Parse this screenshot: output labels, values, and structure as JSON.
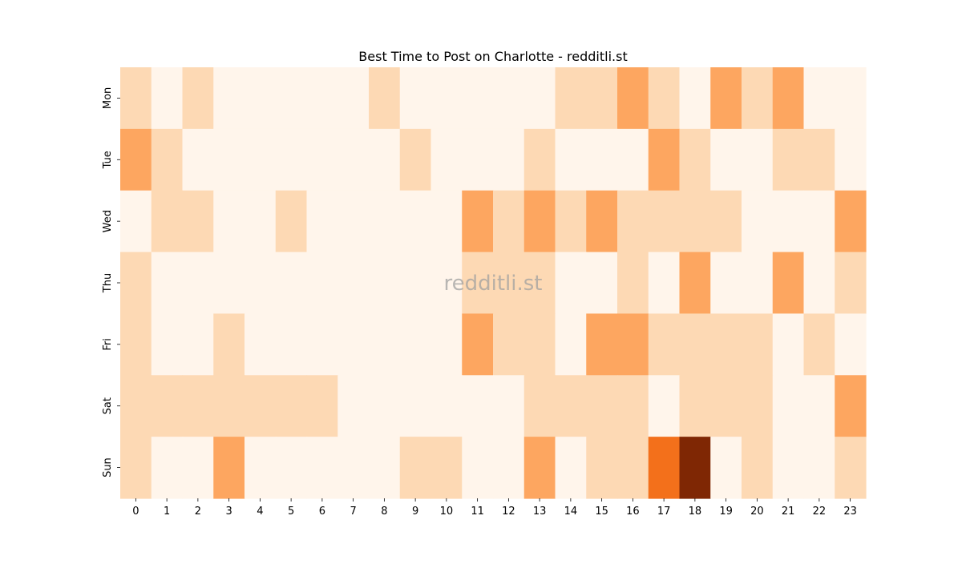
{
  "chart_data": {
    "type": "heatmap",
    "title": "Best Time to Post on Charlotte - redditli.st",
    "watermark": "redditli.st",
    "xlabel": "",
    "ylabel": "",
    "x_categories": [
      "0",
      "1",
      "2",
      "3",
      "4",
      "5",
      "6",
      "7",
      "8",
      "9",
      "10",
      "11",
      "12",
      "13",
      "14",
      "15",
      "16",
      "17",
      "18",
      "19",
      "20",
      "21",
      "22",
      "23"
    ],
    "y_categories": [
      "Mon",
      "Tue",
      "Wed",
      "Thu",
      "Fri",
      "Sat",
      "Sun"
    ],
    "values": [
      [
        1,
        0,
        1,
        0,
        0,
        0,
        0,
        0,
        1,
        0,
        0,
        0,
        0,
        0,
        1,
        1,
        2,
        1,
        0,
        2,
        1,
        2,
        0,
        0
      ],
      [
        2,
        1,
        0,
        0,
        0,
        0,
        0,
        0,
        0,
        1,
        0,
        0,
        0,
        1,
        0,
        0,
        0,
        2,
        1,
        0,
        0,
        1,
        1,
        0
      ],
      [
        0,
        1,
        1,
        0,
        0,
        1,
        0,
        0,
        0,
        0,
        0,
        2,
        1,
        2,
        1,
        2,
        1,
        1,
        1,
        1,
        0,
        0,
        0,
        2
      ],
      [
        1,
        0,
        0,
        0,
        0,
        0,
        0,
        0,
        0,
        0,
        0,
        1,
        1,
        1,
        0,
        0,
        1,
        0,
        2,
        0,
        0,
        2,
        0,
        1
      ],
      [
        1,
        0,
        0,
        1,
        0,
        0,
        0,
        0,
        0,
        0,
        0,
        2,
        1,
        1,
        0,
        2,
        2,
        1,
        1,
        1,
        1,
        0,
        1,
        0
      ],
      [
        1,
        1,
        1,
        1,
        1,
        1,
        1,
        0,
        0,
        0,
        0,
        0,
        0,
        1,
        1,
        1,
        1,
        0,
        1,
        1,
        1,
        0,
        0,
        2
      ],
      [
        1,
        0,
        0,
        2,
        0,
        0,
        0,
        0,
        0,
        1,
        1,
        0,
        0,
        2,
        0,
        1,
        1,
        3,
        4,
        0,
        1,
        0,
        0,
        1
      ]
    ],
    "color_scale": [
      "#fff5eb",
      "#fdd9b4",
      "#fda660",
      "#f3701b",
      "#7f2704"
    ],
    "value_range": [
      0,
      4
    ],
    "colorbar": false,
    "grid": false
  }
}
